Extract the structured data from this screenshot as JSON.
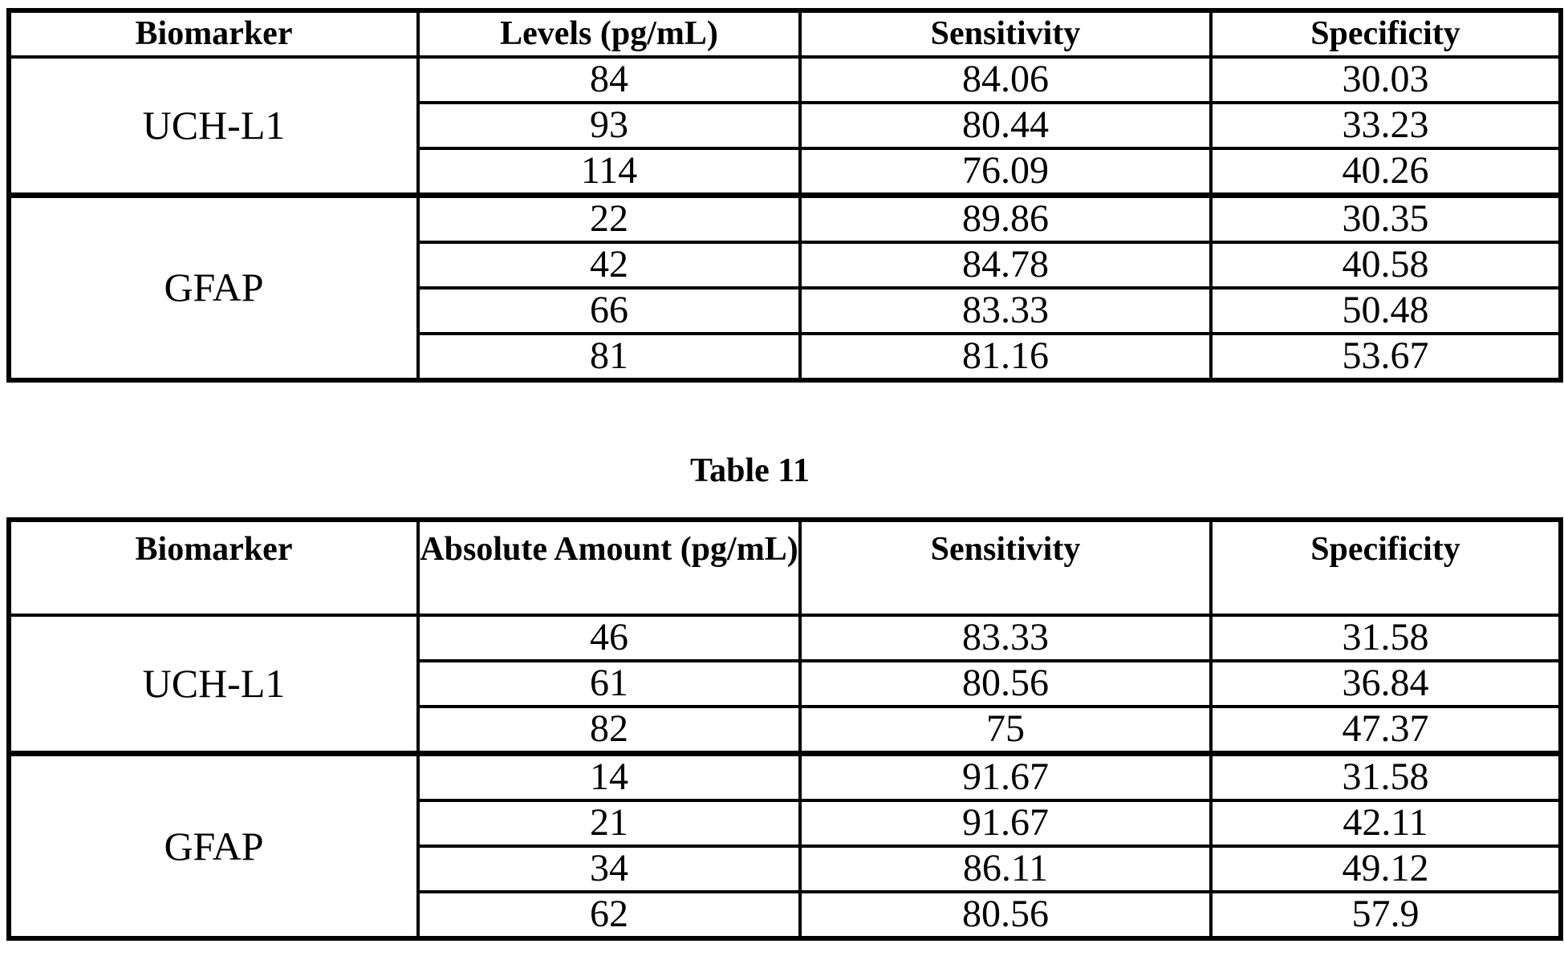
{
  "document": {
    "background": "#ffffff",
    "text_color": "#000000",
    "border_color": "#000000"
  },
  "caption": {
    "text": "Table 11"
  },
  "tables": [
    {
      "name": "biomarker-levels-table",
      "headers": [
        "Biomarker",
        "Levels (pg/mL)",
        "Sensitivity",
        "Specificity"
      ],
      "groups": [
        {
          "biomarker": "UCH-L1",
          "rows": [
            [
              "84",
              "84.06",
              "30.03"
            ],
            [
              "93",
              "80.44",
              "33.23"
            ],
            [
              "114",
              "76.09",
              "40.26"
            ]
          ]
        },
        {
          "biomarker": "GFAP",
          "rows": [
            [
              "22",
              "89.86",
              "30.35"
            ],
            [
              "42",
              "84.78",
              "40.58"
            ],
            [
              "66",
              "83.33",
              "50.48"
            ],
            [
              "81",
              "81.16",
              "53.67"
            ]
          ]
        }
      ]
    },
    {
      "name": "biomarker-absolute-amount-table",
      "headers": [
        "Biomarker",
        "Absolute Amount (pg/mL)",
        "Sensitivity",
        "Specificity"
      ],
      "groups": [
        {
          "biomarker": "UCH-L1",
          "rows": [
            [
              "46",
              "83.33",
              "31.58"
            ],
            [
              "61",
              "80.56",
              "36.84"
            ],
            [
              "82",
              "75",
              "47.37"
            ]
          ]
        },
        {
          "biomarker": "GFAP",
          "rows": [
            [
              "14",
              "91.67",
              "31.58"
            ],
            [
              "21",
              "91.67",
              "42.11"
            ],
            [
              "34",
              "86.11",
              "49.12"
            ],
            [
              "62",
              "80.56",
              "57.9"
            ]
          ]
        }
      ]
    }
  ]
}
